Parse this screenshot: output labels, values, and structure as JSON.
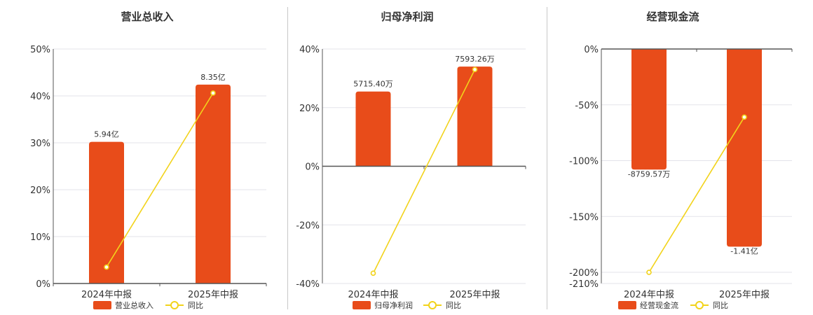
{
  "charts": [
    {
      "title": "营业总收入",
      "categories": [
        "2024年中报",
        "2025年中报"
      ],
      "yticks": [
        "50%",
        "40%",
        "30%",
        "20%",
        "10%",
        "0%"
      ],
      "bar_labels": [
        "5.94亿",
        "8.35亿"
      ],
      "legend": [
        "营业总收入",
        "同比"
      ]
    },
    {
      "title": "归母净利润",
      "categories": [
        "2024年中报",
        "2025年中报"
      ],
      "yticks": [
        "40%",
        "20%",
        "0%",
        "-20%",
        "-40%"
      ],
      "bar_labels": [
        "5715.40万",
        "7593.26万"
      ],
      "legend": [
        "归母净利润",
        "同比"
      ]
    },
    {
      "title": "经营现金流",
      "categories": [
        "2024年中报",
        "2025年中报"
      ],
      "yticks": [
        "0%",
        "-50%",
        "-100%",
        "-150%",
        "-200%",
        "-210%"
      ],
      "bar_labels": [
        "-8759.57万",
        "-1.41亿"
      ],
      "legend": [
        "经营现金流",
        "同比"
      ]
    }
  ],
  "colors": {
    "bar": "#e84c1a",
    "line": "#f2d31b",
    "grid": "#e3e3ea",
    "axis": "#555555"
  },
  "chart_data": [
    {
      "type": "bar",
      "title": "营业总收入",
      "categories": [
        "2024年中报",
        "2025年中报"
      ],
      "ylim": [
        0,
        50
      ],
      "series": [
        {
          "name": "营业总收入",
          "type": "bar",
          "values": [
            30.2,
            42.4
          ],
          "labels": [
            "5.94亿",
            "8.35亿"
          ]
        },
        {
          "name": "同比",
          "type": "line",
          "values": [
            3.5,
            40.6
          ]
        }
      ]
    },
    {
      "type": "bar",
      "title": "归母净利润",
      "categories": [
        "2024年中报",
        "2025年中报"
      ],
      "ylim": [
        -40,
        40
      ],
      "series": [
        {
          "name": "归母净利润",
          "type": "bar",
          "values": [
            25.5,
            34.0
          ],
          "labels": [
            "5715.40万",
            "7593.26万"
          ]
        },
        {
          "name": "同比",
          "type": "line",
          "values": [
            -36.5,
            33.0
          ]
        }
      ]
    },
    {
      "type": "bar",
      "title": "经营现金流",
      "categories": [
        "2024年中报",
        "2025年中报"
      ],
      "ylim": [
        -210,
        0
      ],
      "series": [
        {
          "name": "经营现金流",
          "type": "bar",
          "values": [
            -108,
            -177
          ],
          "labels": [
            "-8759.57万",
            "-1.41亿"
          ]
        },
        {
          "name": "同比",
          "type": "line",
          "values": [
            -200,
            -61
          ]
        }
      ]
    }
  ]
}
